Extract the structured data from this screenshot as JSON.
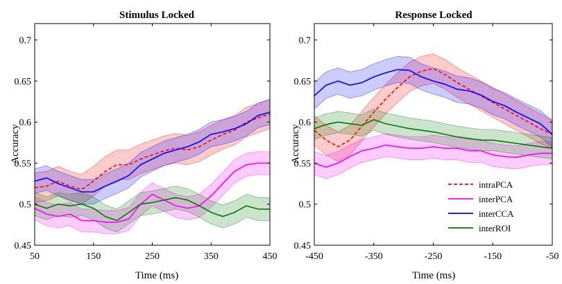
{
  "chart_data": [
    {
      "type": "line",
      "title": "Stimulus Locked",
      "xlabel": "Time (ms)",
      "ylabel": "Accuracy",
      "xlim": [
        50,
        450
      ],
      "ylim": [
        0.45,
        0.72
      ],
      "xticks": [
        50,
        150,
        250,
        350,
        450
      ],
      "xtick_labels": [
        "50",
        "150",
        "250",
        "350",
        "450"
      ],
      "yticks": [
        0.45,
        0.5,
        0.55,
        0.6,
        0.65,
        0.7
      ],
      "ytick_labels": [
        "0.45",
        "0.5",
        "0.55",
        "0.6",
        "0.65",
        "0.7"
      ],
      "x": [
        50,
        70,
        90,
        110,
        130,
        150,
        170,
        190,
        210,
        230,
        250,
        270,
        290,
        310,
        330,
        350,
        370,
        390,
        410,
        430,
        450
      ],
      "series": [
        {
          "name": "intraPCA",
          "color": "#ff0000",
          "dash": "dashed",
          "values": [
            0.52,
            0.522,
            0.528,
            0.522,
            0.518,
            0.528,
            0.54,
            0.548,
            0.548,
            0.555,
            0.56,
            0.565,
            0.568,
            0.566,
            0.57,
            0.578,
            0.585,
            0.59,
            0.6,
            0.605,
            0.61
          ],
          "band": 0.018
        },
        {
          "name": "interPCA",
          "color": "#ff00ff",
          "dash": "solid",
          "values": [
            0.495,
            0.488,
            0.485,
            0.488,
            0.48,
            0.48,
            0.478,
            0.478,
            0.482,
            0.5,
            0.512,
            0.505,
            0.498,
            0.495,
            0.498,
            0.51,
            0.525,
            0.54,
            0.548,
            0.55,
            0.55
          ],
          "band": 0.014
        },
        {
          "name": "interCCA",
          "color": "#0000ff",
          "dash": "solid",
          "values": [
            0.528,
            0.532,
            0.525,
            0.52,
            0.515,
            0.515,
            0.522,
            0.528,
            0.535,
            0.548,
            0.555,
            0.562,
            0.566,
            0.57,
            0.576,
            0.585,
            0.588,
            0.592,
            0.598,
            0.608,
            0.612
          ],
          "band": 0.015
        },
        {
          "name": "interROI",
          "color": "#007a00",
          "dash": "solid",
          "values": [
            0.5,
            0.495,
            0.5,
            0.498,
            0.5,
            0.495,
            0.485,
            0.48,
            0.49,
            0.5,
            0.502,
            0.505,
            0.508,
            0.505,
            0.498,
            0.49,
            0.485,
            0.49,
            0.498,
            0.494,
            0.494
          ],
          "band": 0.014
        }
      ]
    },
    {
      "type": "line",
      "title": "Response Locked",
      "xlabel": "Time (ms)",
      "ylabel": "Accuracy",
      "xlim": [
        -450,
        -50
      ],
      "ylim": [
        0.45,
        0.72
      ],
      "xticks": [
        -450,
        -350,
        -250,
        -150,
        -50
      ],
      "xtick_labels": [
        "-450",
        "-350",
        "-250",
        "-150",
        "-50"
      ],
      "yticks": [
        0.45,
        0.5,
        0.55,
        0.6,
        0.65,
        0.7
      ],
      "ytick_labels": [
        "0.45",
        "0.5",
        "0.55",
        "0.6",
        "0.65",
        "0.7"
      ],
      "x": [
        -450,
        -430,
        -410,
        -390,
        -370,
        -350,
        -330,
        -310,
        -290,
        -270,
        -250,
        -230,
        -210,
        -190,
        -170,
        -150,
        -130,
        -110,
        -90,
        -70,
        -50
      ],
      "legend_position": "bottom-right",
      "series": [
        {
          "name": "intraPCA",
          "color": "#ff0000",
          "dash": "dashed",
          "values": [
            0.59,
            0.578,
            0.57,
            0.578,
            0.595,
            0.612,
            0.628,
            0.642,
            0.655,
            0.662,
            0.665,
            0.658,
            0.648,
            0.64,
            0.632,
            0.624,
            0.616,
            0.608,
            0.6,
            0.592,
            0.585
          ],
          "band": 0.018
        },
        {
          "name": "interPCA",
          "color": "#ff00ff",
          "dash": "solid",
          "values": [
            0.55,
            0.545,
            0.55,
            0.558,
            0.565,
            0.568,
            0.572,
            0.57,
            0.568,
            0.568,
            0.57,
            0.568,
            0.568,
            0.565,
            0.565,
            0.56,
            0.558,
            0.557,
            0.56,
            0.562,
            0.562
          ],
          "band": 0.014
        },
        {
          "name": "interCCA",
          "color": "#0000ff",
          "dash": "solid",
          "values": [
            0.632,
            0.645,
            0.65,
            0.645,
            0.648,
            0.655,
            0.66,
            0.664,
            0.663,
            0.655,
            0.65,
            0.646,
            0.64,
            0.638,
            0.633,
            0.625,
            0.62,
            0.612,
            0.605,
            0.598,
            0.585
          ],
          "band": 0.016
        },
        {
          "name": "interROI",
          "color": "#007a00",
          "dash": "solid",
          "values": [
            0.592,
            0.597,
            0.6,
            0.598,
            0.596,
            0.603,
            0.598,
            0.595,
            0.592,
            0.59,
            0.588,
            0.585,
            0.582,
            0.58,
            0.578,
            0.578,
            0.576,
            0.574,
            0.572,
            0.57,
            0.568
          ],
          "band": 0.013
        }
      ]
    }
  ]
}
